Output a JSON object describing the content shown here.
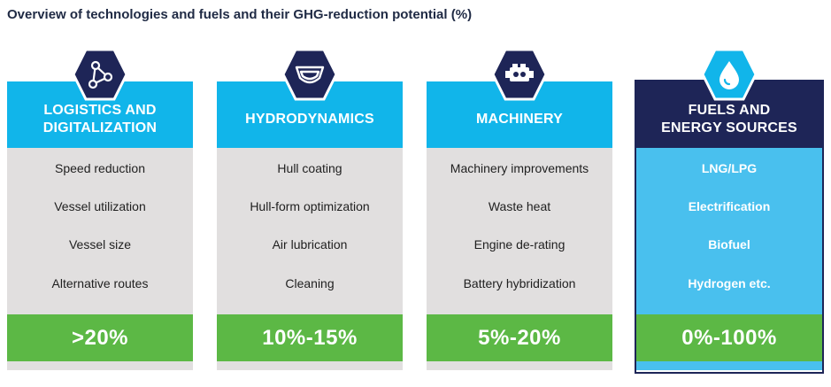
{
  "title": "Overview of technologies and fuels and their GHG-reduction potential (%)",
  "colors": {
    "header_light": "#11b5ea",
    "header_dark": "#1e2557",
    "body_grey": "#e1dfdf",
    "body_blue": "#49c0ee",
    "value_green": "#5cb845"
  },
  "columns": [
    {
      "icon": "network-nodes-icon",
      "header": "LOGISTICS AND\nDIGITALIZATION",
      "items": [
        "Speed reduction",
        "Vessel utilization",
        "Vessel size",
        "Alternative routes"
      ],
      "value": ">20%"
    },
    {
      "icon": "ship-hull-icon",
      "header": "HYDRODYNAMICS",
      "items": [
        "Hull coating",
        "Hull-form optimization",
        "Air lubrication",
        "Cleaning"
      ],
      "value": "10%-15%"
    },
    {
      "icon": "engine-icon",
      "header": "MACHINERY",
      "items": [
        "Machinery improvements",
        "Waste heat",
        "Engine de-rating",
        "Battery hybridization"
      ],
      "value": "5%-20%"
    },
    {
      "icon": "fuel-drop-icon",
      "header": "FUELS AND\nENERGY SOURCES",
      "items": [
        "LNG/LPG",
        "Electrification",
        "Biofuel",
        "Hydrogen etc."
      ],
      "value": "0%-100%"
    }
  ]
}
